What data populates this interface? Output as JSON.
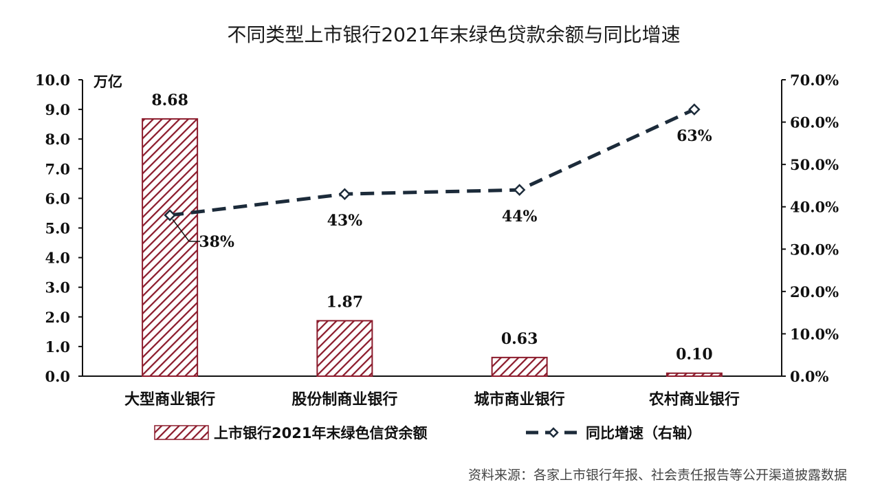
{
  "chart_data": {
    "type": "bar",
    "title": "不同类型上市银行2021年末绿色贷款余额与同比增速",
    "categories": [
      "大型商业银行",
      "股份制商业银行",
      "城市商业银行",
      "农村商业银行"
    ],
    "series": [
      {
        "name": "上市银行2021年末绿色信贷余额",
        "type": "bar",
        "axis": "left",
        "values": [
          8.68,
          1.87,
          0.63,
          0.1
        ],
        "labels": [
          "8.68",
          "1.87",
          "0.63",
          "0.10"
        ],
        "color": "#8b1a2b"
      },
      {
        "name": "同比增速（右轴）",
        "type": "line",
        "axis": "right",
        "values": [
          38,
          43,
          44,
          63
        ],
        "labels": [
          "38%",
          "43%",
          "44%",
          "63%"
        ],
        "color": "#1c2b3a"
      }
    ],
    "y_left": {
      "unit": "万亿",
      "ylim": [
        0,
        10
      ],
      "ticks": [
        "0.0",
        "1.0",
        "2.0",
        "3.0",
        "4.0",
        "5.0",
        "6.0",
        "7.0",
        "8.0",
        "9.0",
        "10.0"
      ]
    },
    "y_right": {
      "ylim": [
        0,
        70
      ],
      "ticks": [
        "0.0%",
        "10.0%",
        "20.0%",
        "30.0%",
        "40.0%",
        "50.0%",
        "60.0%",
        "70.0%"
      ]
    },
    "grid": false,
    "legend_position": "bottom",
    "source": "资料来源：各家上市银行年报、社会责任报告等公开渠道披露数据"
  }
}
